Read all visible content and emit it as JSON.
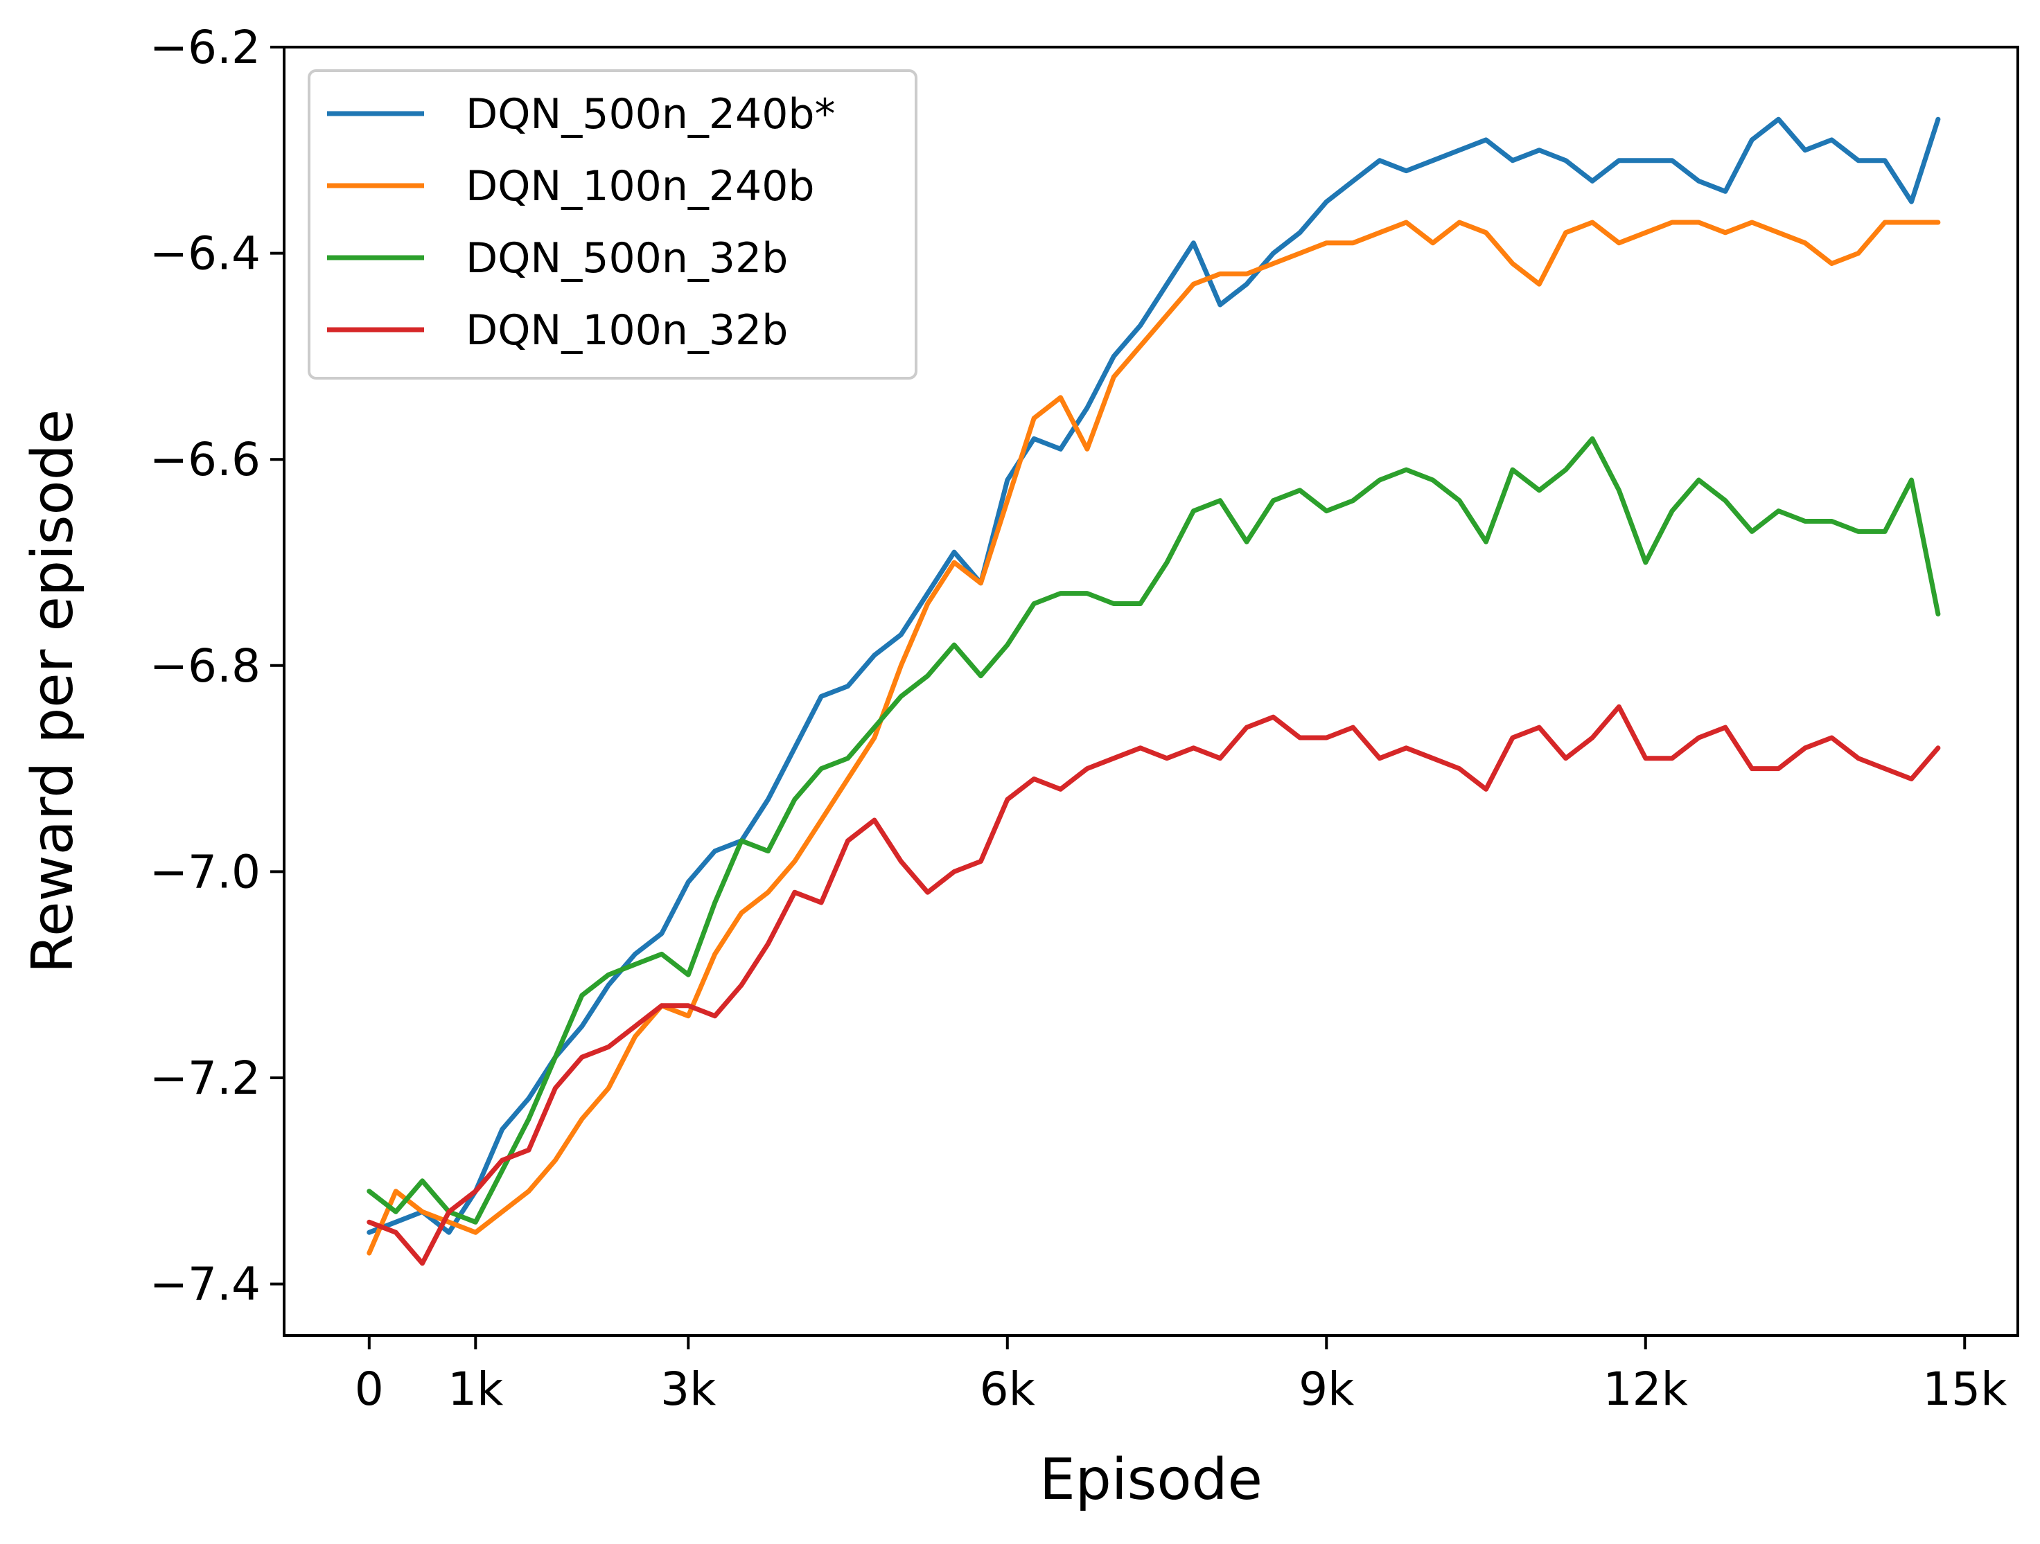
{
  "chart_data": {
    "type": "line",
    "xlabel": "Episode",
    "ylabel": "Reward per episode",
    "xlim": [
      -800,
      15500
    ],
    "ylim": [
      -7.45,
      -6.2
    ],
    "x_ticks": [
      0,
      1000,
      3000,
      6000,
      9000,
      12000,
      15000
    ],
    "x_tick_labels": [
      "0",
      "1k",
      "3k",
      "6k",
      "9k",
      "12k",
      "15k"
    ],
    "y_ticks": [
      -7.4,
      -7.2,
      -7.0,
      -6.8,
      -6.6,
      -6.4,
      -6.2
    ],
    "y_tick_labels": [
      "−7.4",
      "−7.2",
      "−7.0",
      "−6.8",
      "−6.6",
      "−6.4",
      "−6.2"
    ],
    "grid": false,
    "legend_position": "top-left",
    "series": [
      {
        "name": "DQN_500n_240b*",
        "color": "#1f77b4",
        "x": [
          0,
          250,
          500,
          750,
          1000,
          1250,
          1500,
          1750,
          2000,
          2250,
          2500,
          2750,
          3000,
          3250,
          3500,
          3750,
          4000,
          4250,
          4500,
          4750,
          5000,
          5250,
          5500,
          5750,
          6000,
          6250,
          6500,
          6750,
          7000,
          7250,
          7500,
          7750,
          8000,
          8250,
          8500,
          8750,
          9000,
          9250,
          9500,
          9750,
          10000,
          10250,
          10500,
          10750,
          11000,
          11250,
          11500,
          11750,
          12000,
          12250,
          12500,
          12750,
          13000,
          13250,
          13500,
          13750,
          14000,
          14250,
          14500,
          14750
        ],
        "values": [
          -7.35,
          -7.34,
          -7.33,
          -7.35,
          -7.31,
          -7.25,
          -7.22,
          -7.18,
          -7.15,
          -7.11,
          -7.08,
          -7.06,
          -7.01,
          -6.98,
          -6.97,
          -6.93,
          -6.88,
          -6.83,
          -6.82,
          -6.79,
          -6.77,
          -6.73,
          -6.69,
          -6.72,
          -6.62,
          -6.58,
          -6.59,
          -6.55,
          -6.5,
          -6.47,
          -6.43,
          -6.39,
          -6.45,
          -6.43,
          -6.4,
          -6.38,
          -6.35,
          -6.33,
          -6.31,
          -6.32,
          -6.31,
          -6.3,
          -6.29,
          -6.31,
          -6.3,
          -6.31,
          -6.33,
          -6.31,
          -6.31,
          -6.31,
          -6.33,
          -6.34,
          -6.29,
          -6.27,
          -6.3,
          -6.29,
          -6.31,
          -6.31,
          -6.35,
          -6.27
        ]
      },
      {
        "name": "DQN_100n_240b",
        "color": "#ff7f0e",
        "x": [
          0,
          250,
          500,
          750,
          1000,
          1250,
          1500,
          1750,
          2000,
          2250,
          2500,
          2750,
          3000,
          3250,
          3500,
          3750,
          4000,
          4250,
          4500,
          4750,
          5000,
          5250,
          5500,
          5750,
          6000,
          6250,
          6500,
          6750,
          7000,
          7250,
          7500,
          7750,
          8000,
          8250,
          8500,
          8750,
          9000,
          9250,
          9500,
          9750,
          10000,
          10250,
          10500,
          10750,
          11000,
          11250,
          11500,
          11750,
          12000,
          12250,
          12500,
          12750,
          13000,
          13250,
          13500,
          13750,
          14000,
          14250,
          14500,
          14750
        ],
        "values": [
          -7.37,
          -7.31,
          -7.33,
          -7.34,
          -7.35,
          -7.33,
          -7.31,
          -7.28,
          -7.24,
          -7.21,
          -7.16,
          -7.13,
          -7.14,
          -7.08,
          -7.04,
          -7.02,
          -6.99,
          -6.95,
          -6.91,
          -6.87,
          -6.8,
          -6.74,
          -6.7,
          -6.72,
          -6.64,
          -6.56,
          -6.54,
          -6.59,
          -6.52,
          -6.49,
          -6.46,
          -6.43,
          -6.42,
          -6.42,
          -6.41,
          -6.4,
          -6.39,
          -6.39,
          -6.38,
          -6.37,
          -6.39,
          -6.37,
          -6.38,
          -6.41,
          -6.43,
          -6.38,
          -6.37,
          -6.39,
          -6.38,
          -6.37,
          -6.37,
          -6.38,
          -6.37,
          -6.38,
          -6.39,
          -6.41,
          -6.4,
          -6.37,
          -6.37,
          -6.37
        ]
      },
      {
        "name": "DQN_500n_32b",
        "color": "#2ca02c",
        "x": [
          0,
          250,
          500,
          750,
          1000,
          1250,
          1500,
          1750,
          2000,
          2250,
          2500,
          2750,
          3000,
          3250,
          3500,
          3750,
          4000,
          4250,
          4500,
          4750,
          5000,
          5250,
          5500,
          5750,
          6000,
          6250,
          6500,
          6750,
          7000,
          7250,
          7500,
          7750,
          8000,
          8250,
          8500,
          8750,
          9000,
          9250,
          9500,
          9750,
          10000,
          10250,
          10500,
          10750,
          11000,
          11250,
          11500,
          11750,
          12000,
          12250,
          12500,
          12750,
          13000,
          13250,
          13500,
          13750,
          14000,
          14250,
          14500,
          14750
        ],
        "values": [
          -7.31,
          -7.33,
          -7.3,
          -7.33,
          -7.34,
          -7.29,
          -7.24,
          -7.18,
          -7.12,
          -7.1,
          -7.09,
          -7.08,
          -7.1,
          -7.03,
          -6.97,
          -6.98,
          -6.93,
          -6.9,
          -6.89,
          -6.86,
          -6.83,
          -6.81,
          -6.78,
          -6.81,
          -6.78,
          -6.74,
          -6.73,
          -6.73,
          -6.74,
          -6.74,
          -6.7,
          -6.65,
          -6.64,
          -6.68,
          -6.64,
          -6.63,
          -6.65,
          -6.64,
          -6.62,
          -6.61,
          -6.62,
          -6.64,
          -6.68,
          -6.61,
          -6.63,
          -6.61,
          -6.58,
          -6.63,
          -6.7,
          -6.65,
          -6.62,
          -6.64,
          -6.67,
          -6.65,
          -6.66,
          -6.66,
          -6.67,
          -6.67,
          -6.62,
          -6.75
        ]
      },
      {
        "name": "DQN_100n_32b",
        "color": "#d62728",
        "x": [
          0,
          250,
          500,
          750,
          1000,
          1250,
          1500,
          1750,
          2000,
          2250,
          2500,
          2750,
          3000,
          3250,
          3500,
          3750,
          4000,
          4250,
          4500,
          4750,
          5000,
          5250,
          5500,
          5750,
          6000,
          6250,
          6500,
          6750,
          7000,
          7250,
          7500,
          7750,
          8000,
          8250,
          8500,
          8750,
          9000,
          9250,
          9500,
          9750,
          10000,
          10250,
          10500,
          10750,
          11000,
          11250,
          11500,
          11750,
          12000,
          12250,
          12500,
          12750,
          13000,
          13250,
          13500,
          13750,
          14000,
          14250,
          14500,
          14750
        ],
        "values": [
          -7.34,
          -7.35,
          -7.38,
          -7.33,
          -7.31,
          -7.28,
          -7.27,
          -7.21,
          -7.18,
          -7.17,
          -7.15,
          -7.13,
          -7.13,
          -7.14,
          -7.11,
          -7.07,
          -7.02,
          -7.03,
          -6.97,
          -6.95,
          -6.99,
          -7.02,
          -7.0,
          -6.99,
          -6.93,
          -6.91,
          -6.92,
          -6.9,
          -6.89,
          -6.88,
          -6.89,
          -6.88,
          -6.89,
          -6.86,
          -6.85,
          -6.87,
          -6.87,
          -6.86,
          -6.89,
          -6.88,
          -6.89,
          -6.9,
          -6.92,
          -6.87,
          -6.86,
          -6.89,
          -6.87,
          -6.84,
          -6.89,
          -6.89,
          -6.87,
          -6.86,
          -6.9,
          -6.9,
          -6.88,
          -6.87,
          -6.89,
          -6.9,
          -6.91,
          -6.88
        ]
      }
    ]
  }
}
